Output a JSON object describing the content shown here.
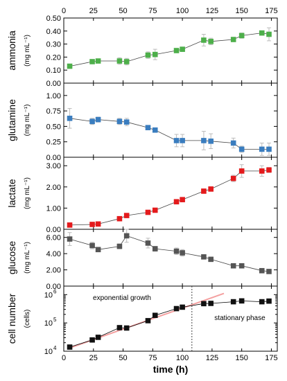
{
  "chart_data": {
    "type": "scatter",
    "x_axis": {
      "label": "time (h)",
      "ticks": [
        0,
        25,
        50,
        75,
        100,
        125,
        150,
        175
      ],
      "range": [
        0,
        180
      ]
    },
    "panels": [
      {
        "id": "ammonia",
        "ylabel": "ammonia",
        "yunit": "(mg mL⁻¹)",
        "ylim": [
          0,
          0.5
        ],
        "yticks": [
          "0.00",
          "0.10",
          "0.20",
          "0.30",
          "0.40",
          "0.50"
        ],
        "color": "#4daf4a",
        "x": [
          5,
          24,
          29,
          47,
          53,
          71,
          77,
          95,
          100,
          118,
          124,
          143,
          150,
          167,
          173
        ],
        "y": [
          0.13,
          0.165,
          0.17,
          0.17,
          0.165,
          0.215,
          0.22,
          0.25,
          0.26,
          0.33,
          0.32,
          0.335,
          0.365,
          0.385,
          0.375
        ],
        "err": [
          0.01,
          0.005,
          0.005,
          0.025,
          0.025,
          0.025,
          0.04,
          0.01,
          0.01,
          0.045,
          0.025,
          0.01,
          0.02,
          0.015,
          0.05
        ]
      },
      {
        "id": "glutamine",
        "ylabel": "glutamine",
        "yunit": "(mg mL⁻¹)",
        "ylim": [
          0,
          1.2
        ],
        "yticks": [
          "0.00",
          "0.25",
          "0.50",
          "0.75",
          "1.00"
        ],
        "color": "#3a7dbf",
        "x": [
          5,
          24,
          29,
          47,
          53,
          71,
          77,
          95,
          100,
          118,
          124,
          143,
          150,
          167,
          173
        ],
        "y": [
          0.63,
          0.58,
          0.61,
          0.58,
          0.57,
          0.48,
          0.44,
          0.27,
          0.27,
          0.27,
          0.26,
          0.23,
          0.13,
          0.13,
          0.13
        ],
        "err": [
          0.16,
          0.05,
          0.04,
          0.05,
          0.06,
          0.02,
          0.03,
          0.1,
          0.1,
          0.15,
          0.12,
          0.08,
          0.05,
          0.1,
          0.1
        ]
      },
      {
        "id": "lactate",
        "ylabel": "lactate",
        "yunit": "(mg mL⁻¹)",
        "ylim": [
          0,
          3.4
        ],
        "yticks": [
          "0.00",
          "1.00",
          "2.00",
          "3.00"
        ],
        "color": "#e41a1c",
        "x": [
          5,
          24,
          29,
          47,
          53,
          71,
          77,
          95,
          100,
          118,
          124,
          143,
          150,
          167,
          173
        ],
        "y": [
          0.2,
          0.23,
          0.25,
          0.5,
          0.65,
          0.8,
          0.9,
          1.3,
          1.4,
          1.8,
          1.9,
          2.4,
          2.75,
          2.75,
          2.8
        ],
        "err": [
          0.03,
          0.03,
          0.03,
          0.05,
          0.05,
          0.05,
          0.05,
          0.1,
          0.1,
          0.1,
          0.1,
          0.15,
          0.3,
          0.25,
          0.12
        ]
      },
      {
        "id": "glucose",
        "ylabel": "glucose",
        "yunit": "(mg mL⁻¹)",
        "ylim": [
          0,
          7.0
        ],
        "yticks": [
          "0.00",
          "2.00",
          "4.00",
          "6.00"
        ],
        "color": "#555555",
        "x": [
          5,
          24,
          29,
          47,
          53,
          71,
          77,
          95,
          100,
          118,
          124,
          143,
          150,
          167,
          173
        ],
        "y": [
          5.8,
          5.0,
          4.5,
          4.9,
          6.2,
          5.3,
          4.6,
          4.3,
          4.1,
          3.6,
          3.3,
          2.5,
          2.5,
          1.9,
          1.8
        ],
        "err": [
          0.8,
          0.4,
          0.2,
          0.3,
          0.8,
          0.6,
          0.3,
          0.4,
          0.4,
          0.2,
          0.2,
          0.2,
          0.2,
          0.2,
          0.2
        ]
      },
      {
        "id": "cells",
        "ylabel": "cell number",
        "yunit": "(cells)",
        "log": true,
        "ylim": [
          10000,
          2000000
        ],
        "yticks": [
          10000,
          100000,
          1000000
        ],
        "ytick_labels": [
          {
            "base": "10",
            "exp": "4"
          },
          {
            "base": "10",
            "exp": "5"
          },
          {
            "base": "10",
            "exp": "6"
          }
        ],
        "color": "#111111",
        "x": [
          5,
          24,
          29,
          47,
          53,
          71,
          77,
          95,
          100,
          118,
          124,
          143,
          150,
          167,
          173
        ],
        "y": [
          14000,
          25000,
          31000,
          68000,
          66000,
          120000,
          185000,
          320000,
          360000,
          480000,
          490000,
          560000,
          600000,
          560000,
          590000
        ],
        "fit_line": {
          "color": "#f4a0a0",
          "from": [
            5,
            13000
          ],
          "to": [
            135,
            1100000
          ]
        },
        "divider_x": 108,
        "annotations": [
          "exponential growth",
          "stationary phase"
        ]
      }
    ]
  }
}
